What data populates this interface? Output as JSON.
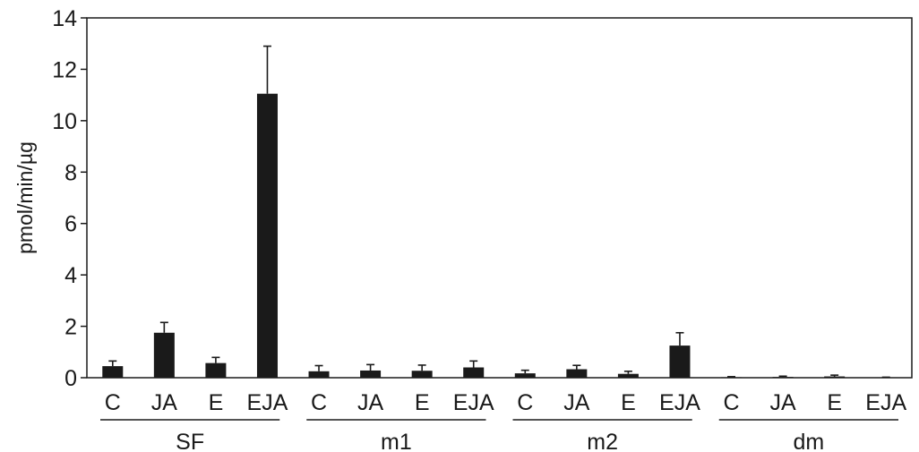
{
  "chart_data": {
    "type": "bar",
    "ylabel": "pmol/min/µg",
    "xlabel": "",
    "ylim": [
      0,
      14
    ],
    "yticks": [
      0,
      2,
      4,
      6,
      8,
      10,
      12,
      14
    ],
    "grid": false,
    "bar_color": "#1a1a1a",
    "groups": [
      {
        "name": "SF",
        "categories": [
          "C",
          "JA",
          "E",
          "EJA"
        ],
        "values": [
          0.45,
          1.75,
          0.57,
          11.05
        ],
        "errors": [
          0.2,
          0.4,
          0.22,
          1.85
        ]
      },
      {
        "name": "m1",
        "categories": [
          "C",
          "JA",
          "E",
          "EJA"
        ],
        "values": [
          0.25,
          0.28,
          0.27,
          0.4
        ],
        "errors": [
          0.22,
          0.23,
          0.22,
          0.25
        ]
      },
      {
        "name": "m2",
        "categories": [
          "C",
          "JA",
          "E",
          "EJA"
        ],
        "values": [
          0.17,
          0.33,
          0.15,
          1.25
        ],
        "errors": [
          0.12,
          0.15,
          0.1,
          0.5
        ]
      },
      {
        "name": "dm",
        "categories": [
          "C",
          "JA",
          "E",
          "EJA"
        ],
        "values": [
          0.02,
          0.03,
          0.05,
          0.01
        ],
        "errors": [
          0.02,
          0.03,
          0.05,
          0.01
        ]
      }
    ]
  }
}
